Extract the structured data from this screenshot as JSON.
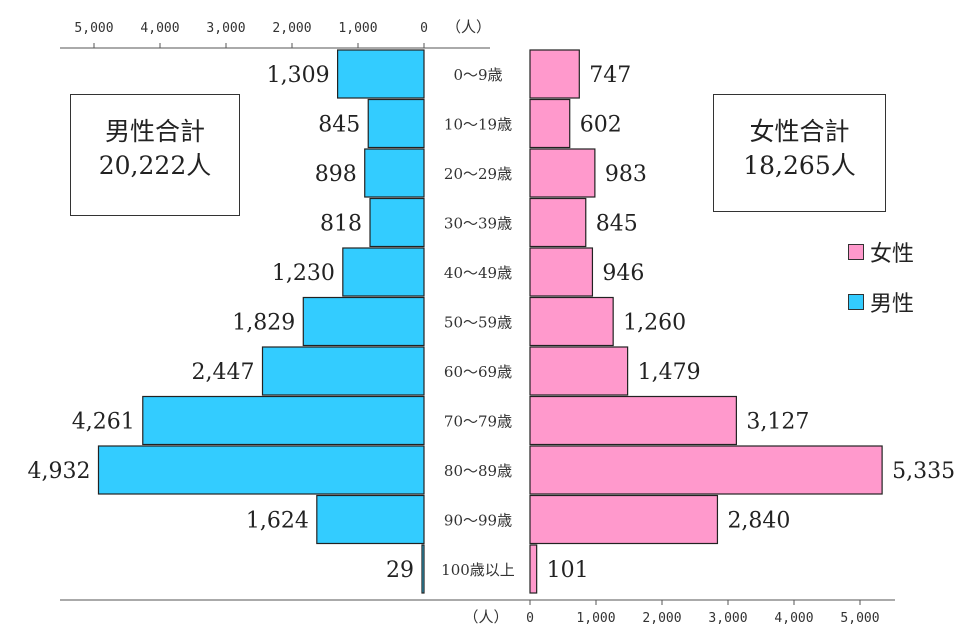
{
  "totals": {
    "male_label": "男性合計",
    "male_value": "20,222人",
    "female_label": "女性合計",
    "female_value": "18,265人"
  },
  "legend": {
    "female": "女性",
    "male": "男性"
  },
  "colors": {
    "male": "#33ccff",
    "female": "#ff99cc",
    "outline": "#222222"
  },
  "chart_data": {
    "type": "bar",
    "categories": [
      "0〜9歳",
      "10〜19歳",
      "20〜29歳",
      "30〜39歳",
      "40〜49歳",
      "50〜59歳",
      "60〜69歳",
      "70〜79歳",
      "80〜89歳",
      "90〜99歳",
      "100歳以上"
    ],
    "series": [
      {
        "name": "男性",
        "values": [
          1309,
          845,
          898,
          818,
          1230,
          1829,
          2447,
          4261,
          4932,
          1624,
          29
        ],
        "labels": [
          "1,309",
          "845",
          "898",
          "818",
          "1,230",
          "1,829",
          "2,447",
          "4,261",
          "4,932",
          "1,624",
          "29"
        ]
      },
      {
        "name": "女性",
        "values": [
          747,
          602,
          983,
          845,
          946,
          1260,
          1479,
          3127,
          5335,
          2840,
          101
        ],
        "labels": [
          "747",
          "602",
          "983",
          "845",
          "946",
          "1,260",
          "1,479",
          "3,127",
          "5,335",
          "2,840",
          "101"
        ]
      }
    ],
    "male_axis": {
      "ticks": [
        5000,
        4000,
        3000,
        2000,
        1000,
        0
      ],
      "tick_labels": [
        "5,000",
        "4,000",
        "3,000",
        "2,000",
        "1,000",
        "0"
      ],
      "unit": "（人）"
    },
    "female_axis": {
      "ticks": [
        0,
        1000,
        2000,
        3000,
        4000,
        5000
      ],
      "tick_labels": [
        "0",
        "1,000",
        "2,000",
        "3,000",
        "4,000",
        "5,000"
      ],
      "unit": "（人）"
    },
    "xlim": [
      0,
      5335
    ]
  }
}
